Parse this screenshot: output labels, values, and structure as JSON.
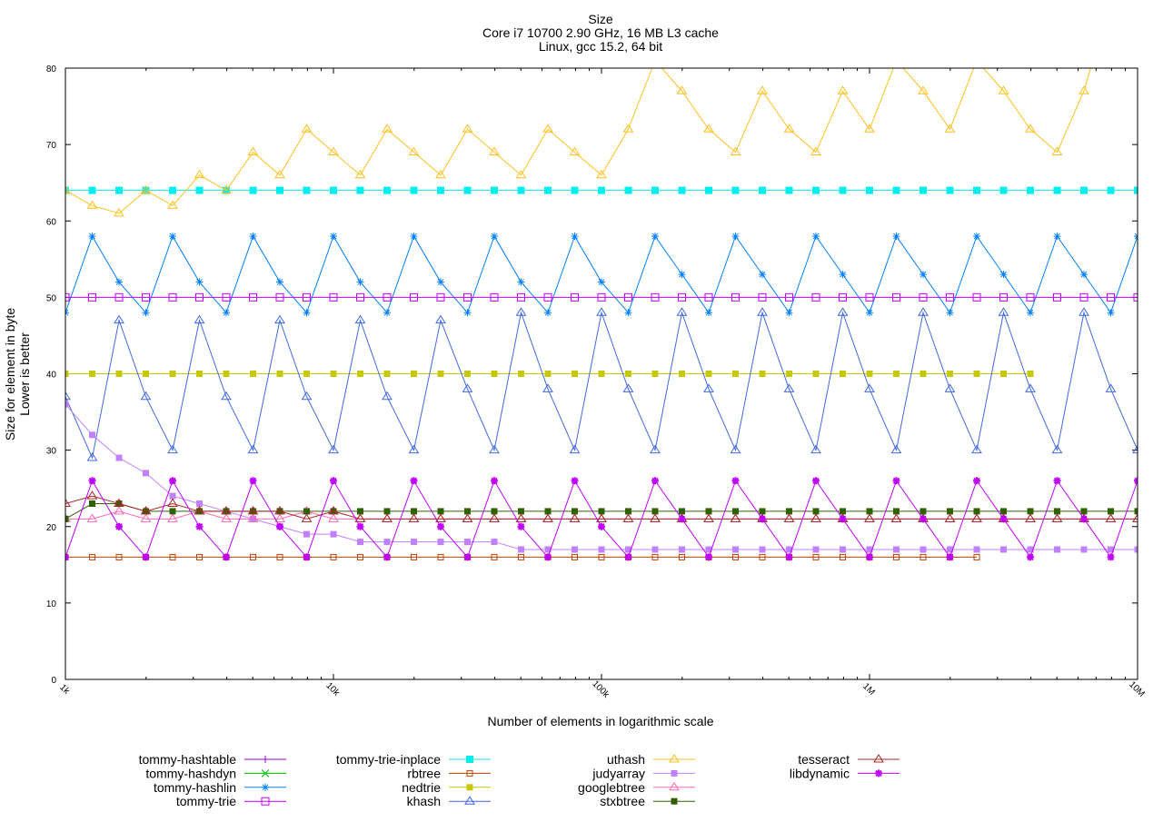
{
  "chart_data": {
    "type": "line",
    "title": [
      "Size",
      "Core i7 10700 2.90 GHz, 16 MB L3 cache",
      "Linux, gcc 15.2, 64 bit"
    ],
    "xlabel": "Number of elements in logarithmic scale",
    "ylabel": [
      "Size for element in byte",
      "Lower is better"
    ],
    "xscale": "log",
    "xlim": [
      1000,
      10000000
    ],
    "ylim": [
      0,
      80
    ],
    "xticks": [
      {
        "value": 1000,
        "label": "1k"
      },
      {
        "value": 10000,
        "label": "10k"
      },
      {
        "value": 100000,
        "label": "100k"
      },
      {
        "value": 1000000,
        "label": "1M"
      },
      {
        "value": 10000000,
        "label": "10M"
      }
    ],
    "yticks": [
      0,
      10,
      20,
      30,
      40,
      50,
      60,
      70,
      80
    ],
    "x_note": "points at x = 10^(3 + i/10), i = 0..40",
    "grid": false,
    "legend_position": "bottom",
    "series": [
      {
        "name": "tommy-hashtable",
        "color": "#9400d3",
        "marker": "plus",
        "values": []
      },
      {
        "name": "tommy-hashdyn",
        "color": "#00c000",
        "marker": "cross",
        "values": []
      },
      {
        "name": "tommy-hashlin",
        "color": "#0080ff",
        "marker": "star",
        "values": [
          48,
          58,
          52,
          48,
          58,
          52,
          48,
          58,
          52,
          48,
          58,
          52,
          48,
          58,
          52,
          48,
          58,
          52,
          48,
          58,
          52,
          48,
          58,
          53,
          48,
          58,
          53,
          48,
          58,
          53,
          48,
          58,
          53,
          48,
          58,
          53,
          48,
          58,
          53,
          48,
          58
        ]
      },
      {
        "name": "tommy-trie",
        "color": "#c000ff",
        "marker": "open-square",
        "values": [
          50,
          50,
          50,
          50,
          50,
          50,
          50,
          50,
          50,
          50,
          50,
          50,
          50,
          50,
          50,
          50,
          50,
          50,
          50,
          50,
          50,
          50,
          50,
          50,
          50,
          50,
          50,
          50,
          50,
          50,
          50,
          50,
          50,
          50,
          50,
          50,
          50,
          50,
          50,
          50,
          50
        ]
      },
      {
        "name": "tommy-trie-inplace",
        "color": "#00eeee",
        "marker": "filled-square",
        "values": [
          64,
          64,
          64,
          64,
          64,
          64,
          64,
          64,
          64,
          64,
          64,
          64,
          64,
          64,
          64,
          64,
          64,
          64,
          64,
          64,
          64,
          64,
          64,
          64,
          64,
          64,
          64,
          64,
          64,
          64,
          64,
          64,
          64,
          64,
          64,
          64,
          64,
          64,
          64,
          64,
          64
        ]
      },
      {
        "name": "rbtree",
        "color": "#c04000",
        "marker": "small-open-square",
        "values": [
          16,
          16,
          16,
          16,
          16,
          16,
          16,
          16,
          16,
          16,
          16,
          16,
          16,
          16,
          16,
          16,
          16,
          16,
          16,
          16,
          16,
          16,
          16,
          16,
          16,
          16,
          16,
          16,
          16,
          16,
          16,
          16,
          16,
          16,
          16
        ]
      },
      {
        "name": "nedtrie",
        "color": "#c8c800",
        "marker": "small-filled-square",
        "values": [
          40,
          40,
          40,
          40,
          40,
          40,
          40,
          40,
          40,
          40,
          40,
          40,
          40,
          40,
          40,
          40,
          40,
          40,
          40,
          40,
          40,
          40,
          40,
          40,
          40,
          40,
          40,
          40,
          40,
          40,
          40,
          40,
          40,
          40,
          40,
          40,
          40
        ]
      },
      {
        "name": "khash",
        "color": "#4169e1",
        "marker": "open-triangle",
        "values": [
          37,
          29,
          47,
          37,
          30,
          47,
          37,
          30,
          47,
          37,
          30,
          47,
          37,
          30,
          47,
          38,
          30,
          48,
          38,
          30,
          48,
          38,
          30,
          48,
          38,
          30,
          48,
          38,
          30,
          48,
          38,
          30,
          48,
          38,
          30,
          48,
          38,
          30,
          48,
          38,
          30
        ]
      },
      {
        "name": "uthash",
        "color": "#ffc020",
        "marker": "open-triangle",
        "values": [
          64,
          62,
          61,
          64,
          62,
          66,
          64,
          69,
          66,
          72,
          69,
          66,
          72,
          69,
          66,
          72,
          69,
          66,
          72,
          69,
          66,
          72,
          81,
          77,
          72,
          69,
          77,
          72,
          69,
          77,
          72,
          81,
          77,
          72,
          81,
          77,
          72,
          69,
          77,
          89
        ]
      },
      {
        "name": "judyarray",
        "color": "#c080ff",
        "marker": "small-filled-square",
        "values": [
          36,
          32,
          29,
          27,
          24,
          23,
          22,
          21,
          20,
          19,
          19,
          18,
          18,
          18,
          18,
          18,
          18,
          17,
          17,
          17,
          17,
          17,
          17,
          17,
          17,
          17,
          17,
          17,
          17,
          17,
          17,
          17,
          17,
          17,
          17,
          17,
          17,
          17,
          17,
          17,
          17
        ]
      },
      {
        "name": "googlebtree",
        "color": "#ff69b4",
        "marker": "open-triangle",
        "values": [
          21,
          21,
          22,
          21,
          21,
          22,
          21,
          21,
          21,
          22,
          21,
          21,
          21,
          21,
          21,
          21,
          21,
          21,
          21,
          21,
          21,
          21,
          21,
          21,
          21,
          21,
          21,
          21,
          21,
          21,
          21,
          21,
          21,
          21,
          21,
          21,
          21,
          21,
          21,
          21,
          21
        ]
      },
      {
        "name": "stxbtree",
        "color": "#306000",
        "marker": "small-filled-square",
        "values": [
          21,
          23,
          23,
          22,
          22,
          22,
          22,
          22,
          22,
          22,
          22,
          22,
          22,
          22,
          22,
          22,
          22,
          22,
          22,
          22,
          22,
          22,
          22,
          22,
          22,
          22,
          22,
          22,
          22,
          22,
          22,
          22,
          22,
          22,
          22,
          22,
          22,
          22,
          22,
          22,
          22
        ]
      },
      {
        "name": "tesseract",
        "color": "#a52a2a",
        "marker": "open-triangle",
        "values": [
          23,
          24,
          23,
          22,
          23,
          22,
          22,
          22,
          22,
          21,
          22,
          21,
          21,
          21,
          21,
          21,
          21,
          21,
          21,
          21,
          21,
          21,
          21,
          21,
          21,
          21,
          21,
          21,
          21,
          21,
          21,
          21,
          21,
          21,
          21,
          21,
          21,
          21,
          21,
          21,
          21
        ]
      },
      {
        "name": "libdynamic",
        "color": "#c000ff",
        "marker": "filled-star",
        "values": [
          16,
          26,
          20,
          16,
          26,
          20,
          16,
          26,
          20,
          16,
          26,
          20,
          16,
          26,
          20,
          16,
          26,
          20,
          16,
          26,
          20,
          16,
          26,
          21,
          16,
          26,
          21,
          16,
          26,
          21,
          16,
          26,
          21,
          16,
          26,
          21,
          16,
          26,
          21,
          16,
          26
        ]
      }
    ]
  }
}
